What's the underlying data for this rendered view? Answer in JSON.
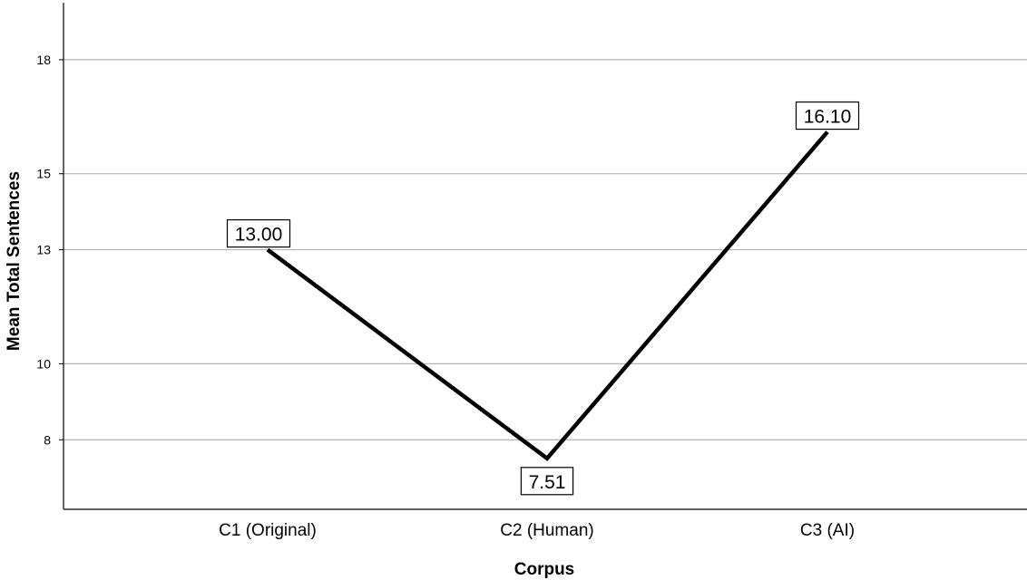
{
  "chart_data": {
    "type": "line",
    "title": "",
    "xlabel": "Corpus",
    "ylabel": "Mean Total Sentences",
    "categories": [
      "C1 (Original)",
      "C2 (Human)",
      "C3 (AI)"
    ],
    "series": [
      {
        "values": [
          13.0,
          7.51,
          16.1
        ]
      }
    ],
    "data_labels": [
      "13.00",
      "7.51",
      "16.10"
    ],
    "yticks": [
      8,
      10,
      13,
      15,
      18
    ],
    "ytick_labels": [
      "8",
      "10",
      "13",
      "15",
      "18"
    ],
    "ylim": [
      6.17,
      19.5
    ],
    "grid": true,
    "legend": false
  },
  "colors": {
    "line": "#000000",
    "grid": "#b4b4b4",
    "axis": "#000000",
    "label_box_fill": "#ffffff"
  }
}
